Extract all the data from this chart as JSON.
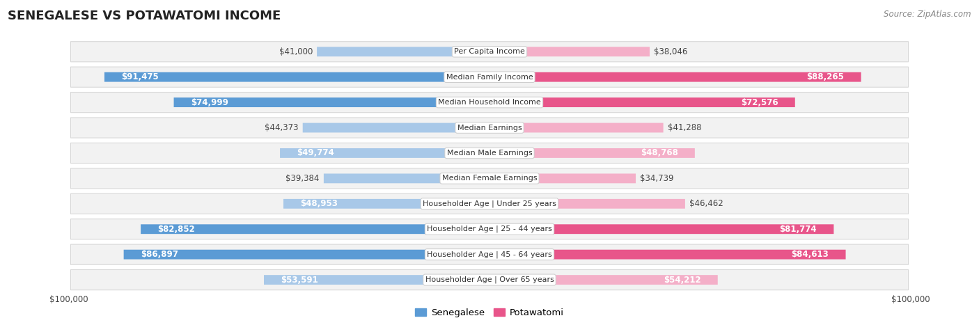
{
  "title": "SENEGALESE VS POTAWATOMI INCOME",
  "source": "Source: ZipAtlas.com",
  "categories": [
    "Per Capita Income",
    "Median Family Income",
    "Median Household Income",
    "Median Earnings",
    "Median Male Earnings",
    "Median Female Earnings",
    "Householder Age | Under 25 years",
    "Householder Age | 25 - 44 years",
    "Householder Age | 45 - 64 years",
    "Householder Age | Over 65 years"
  ],
  "senegalese_values": [
    41000,
    91475,
    74999,
    44373,
    49774,
    39384,
    48953,
    82852,
    86897,
    53591
  ],
  "potawatomi_values": [
    38046,
    88265,
    72576,
    41288,
    48768,
    34739,
    46462,
    81774,
    84613,
    54212
  ],
  "max_value": 100000,
  "senegalese_color_light": "#a8c8e8",
  "senegalese_color_dark": "#5b9bd5",
  "potawatomi_color_light": "#f4afc8",
  "potawatomi_color_dark": "#e8558a",
  "row_bg_color": "#f2f2f2",
  "row_border_color": "#d8d8d8",
  "label_fontsize": 8.5,
  "category_fontsize": 8.0,
  "axis_label_fontsize": 8.5,
  "legend_fontsize": 9.5,
  "background_color": "#ffffff",
  "inside_label_threshold": 0.48
}
